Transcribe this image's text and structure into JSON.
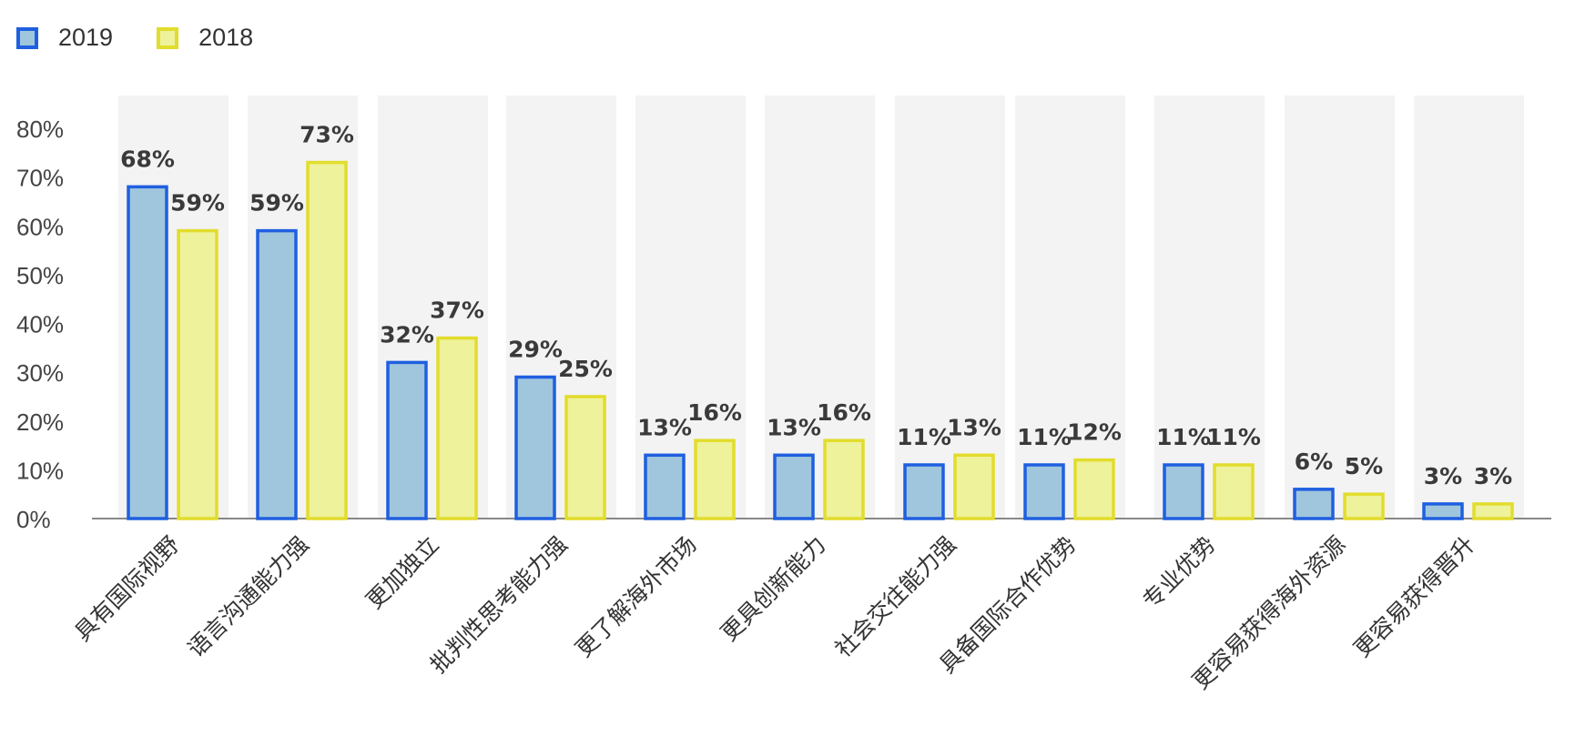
{
  "chart_data": {
    "type": "bar",
    "categories": [
      "具有国际视野",
      "语言沟通能力强",
      "更加独立",
      "批判性思考能力强",
      "更了解海外市场",
      "更具创新能力",
      "社会交往能力强",
      "具备国际合作优势",
      "专业优势",
      "更容易获得海外资源",
      "更容易获得晋升"
    ],
    "series": [
      {
        "name": "2019",
        "values": [
          68,
          59,
          32,
          29,
          13,
          13,
          11,
          11,
          11,
          6,
          3
        ],
        "fill": "#9fc6dc",
        "stroke": "#1f5fe0"
      },
      {
        "name": "2018",
        "values": [
          59,
          73,
          37,
          25,
          16,
          16,
          13,
          12,
          11,
          5,
          3
        ],
        "fill": "#eef29a",
        "stroke": "#e2dc2c"
      }
    ],
    "data_labels": [
      [
        "68%",
        "59%",
        "32%",
        "29%",
        "13%",
        "13%",
        "11%",
        "11%",
        "11%",
        "6%",
        "3%"
      ],
      [
        "59%",
        "73%",
        "37%",
        "25%",
        "16%",
        "16%",
        "13%",
        "12%",
        "11%",
        "5%",
        "3%"
      ]
    ],
    "yticks": [
      "0%",
      "10%",
      "20%",
      "30%",
      "40%",
      "50%",
      "60%",
      "70%",
      "80%"
    ],
    "ylim": [
      0,
      80
    ],
    "xlabel": "",
    "ylabel": "",
    "legend_position": "top-left",
    "grid": false,
    "band_color": "#f3f3f4"
  }
}
